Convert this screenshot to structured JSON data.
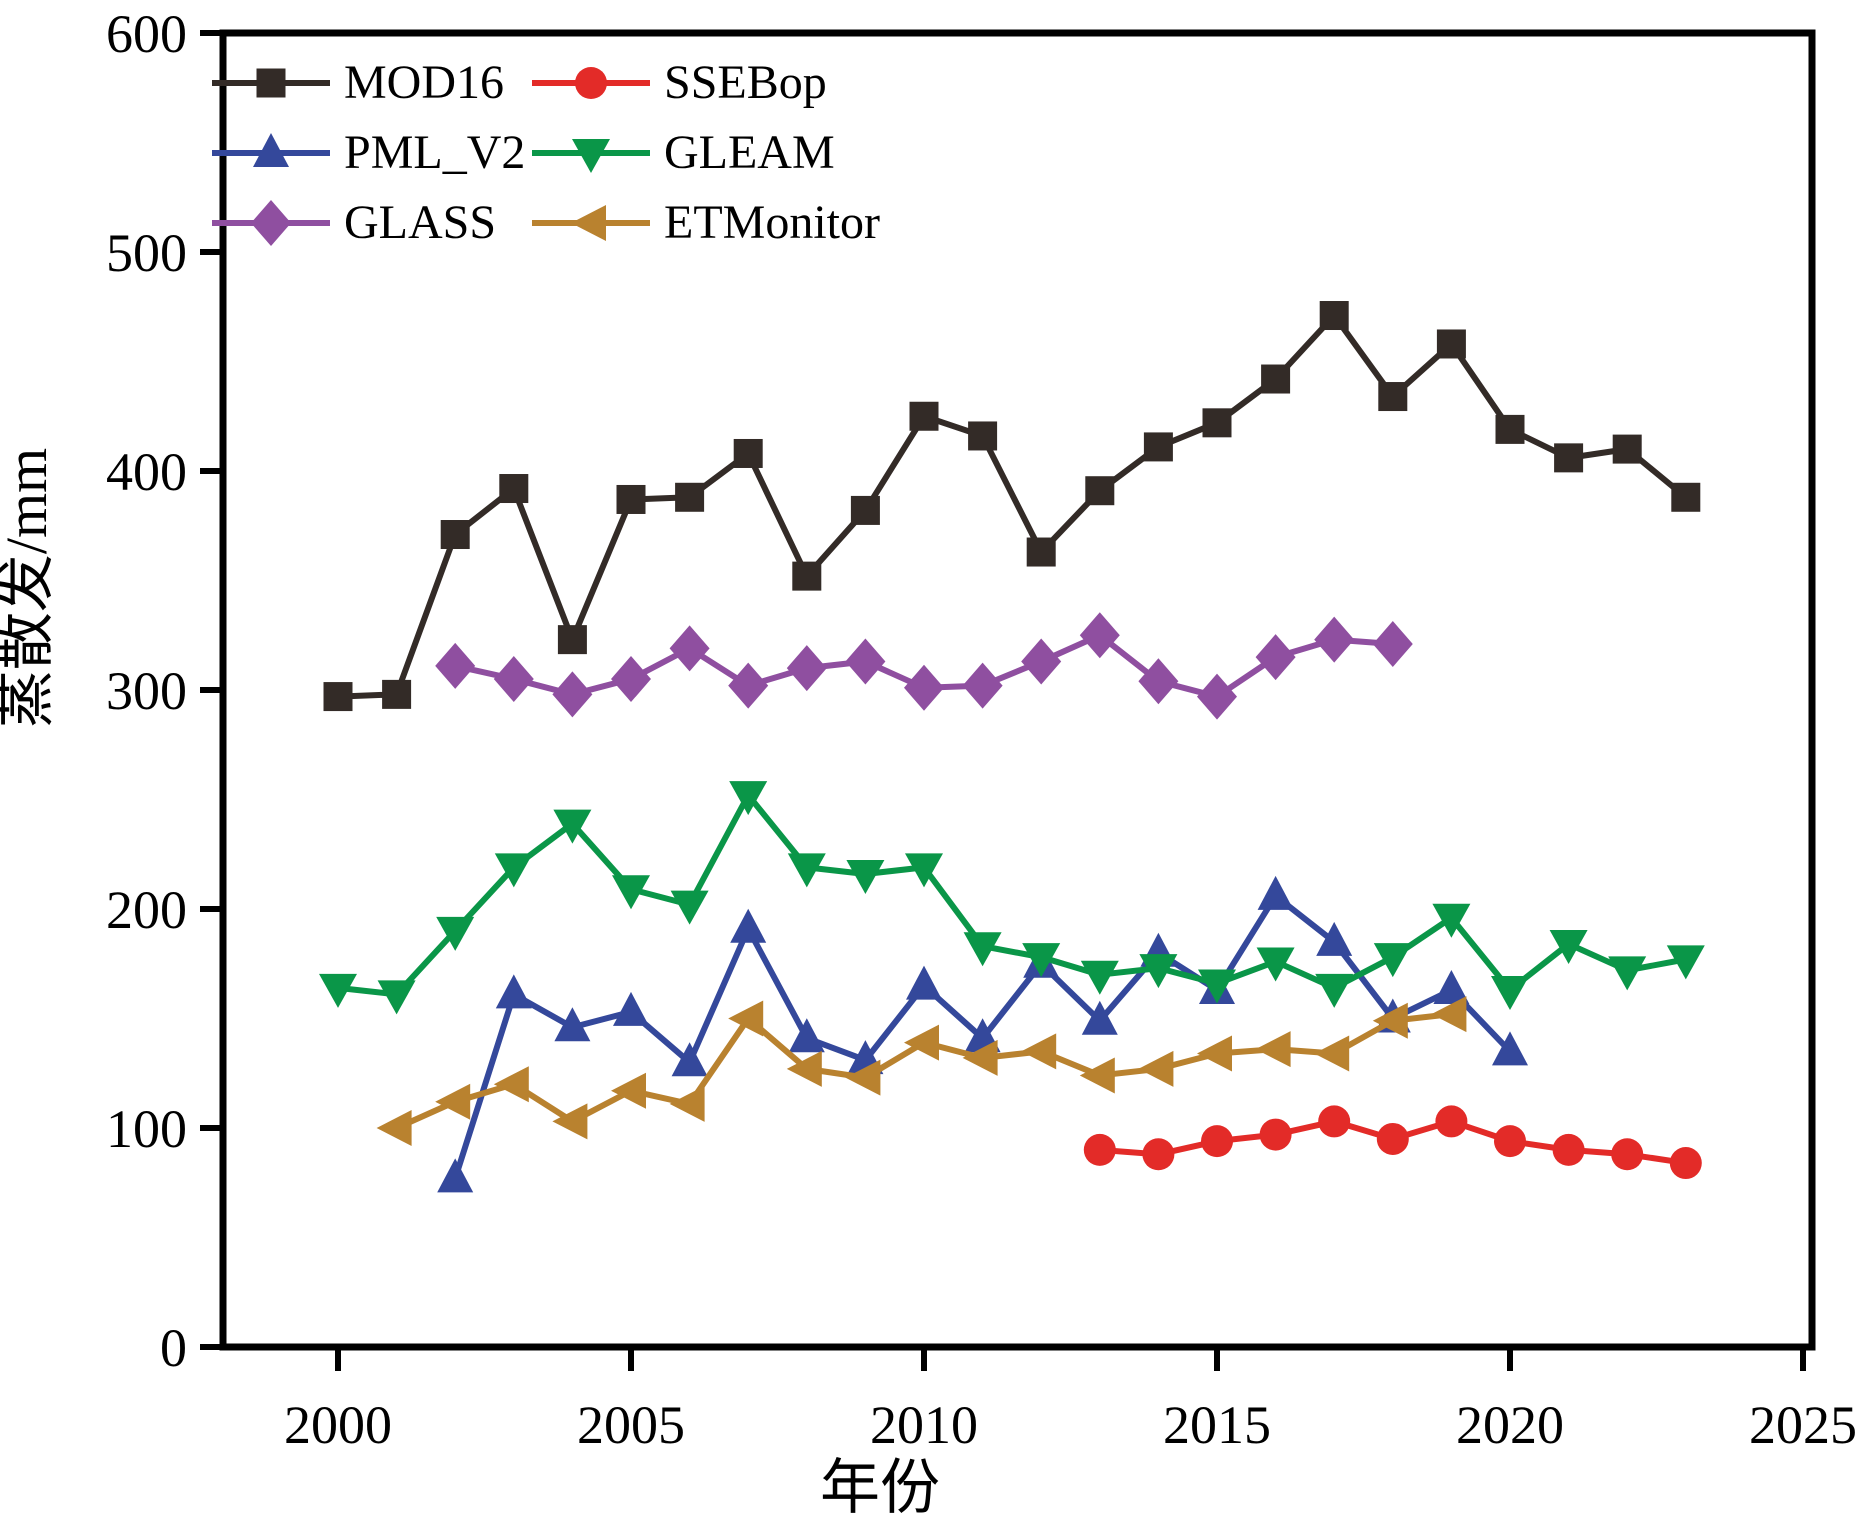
{
  "chart_data": {
    "type": "line",
    "title": "",
    "xlabel": "年份",
    "ylabel": "蒸散发/mm",
    "xlim": [
      1998,
      2025.2
    ],
    "ylim": [
      0,
      600
    ],
    "xticks": [
      2000,
      2005,
      2010,
      2015,
      2020,
      2025
    ],
    "yticks": [
      0,
      100,
      200,
      300,
      400,
      500,
      600
    ],
    "grid": false,
    "background": "#ffffff",
    "axis_color": "#000000",
    "legend_position": "top-left-inside-two-columns",
    "series": [
      {
        "name": "MOD16",
        "color": "#332b27",
        "marker": "square",
        "years": [
          2000,
          2001,
          2002,
          2003,
          2004,
          2005,
          2006,
          2007,
          2008,
          2009,
          2010,
          2011,
          2012,
          2013,
          2014,
          2015,
          2016,
          2017,
          2018,
          2019,
          2020,
          2021,
          2022,
          2023
        ],
        "values": [
          297,
          298,
          371,
          392,
          323,
          387,
          388,
          408,
          352,
          382,
          425,
          416,
          363,
          391,
          411,
          422,
          442,
          471,
          434,
          458,
          419,
          406,
          410,
          388
        ]
      },
      {
        "name": "PML_V2",
        "color": "#34489b",
        "marker": "triangle-up",
        "years": [
          2002,
          2003,
          2004,
          2005,
          2006,
          2007,
          2008,
          2009,
          2010,
          2011,
          2012,
          2013,
          2014,
          2015,
          2016,
          2017,
          2018,
          2019,
          2020
        ],
        "values": [
          77,
          161,
          146,
          153,
          130,
          191,
          141,
          131,
          165,
          141,
          175,
          149,
          180,
          163,
          206,
          185,
          150,
          163,
          135
        ]
      },
      {
        "name": "GLASS",
        "color": "#8f4fa0",
        "marker": "diamond",
        "years": [
          2002,
          2003,
          2004,
          2005,
          2006,
          2007,
          2008,
          2009,
          2010,
          2011,
          2012,
          2013,
          2014,
          2015,
          2016,
          2017,
          2018
        ],
        "values": [
          311,
          305,
          298,
          305,
          319,
          302,
          310,
          313,
          301,
          302,
          313,
          325,
          304,
          297,
          315,
          323,
          321
        ]
      },
      {
        "name": "GLEAM",
        "color": "#0a9648",
        "marker": "triangle-down",
        "years": [
          2000,
          2001,
          2002,
          2003,
          2004,
          2005,
          2006,
          2007,
          2008,
          2009,
          2010,
          2011,
          2012,
          2013,
          2014,
          2015,
          2016,
          2017,
          2018,
          2019,
          2020,
          2021,
          2022,
          2023
        ],
        "values": [
          164,
          161,
          190,
          219,
          239,
          209,
          202,
          252,
          219,
          216,
          219,
          183,
          178,
          170,
          173,
          166,
          176,
          164,
          178,
          196,
          163,
          184,
          172,
          177
        ]
      },
      {
        "name": "ETMonitor",
        "color": "#b9822f",
        "marker": "triangle-left",
        "years": [
          2001,
          2002,
          2003,
          2004,
          2005,
          2006,
          2007,
          2008,
          2009,
          2010,
          2011,
          2012,
          2013,
          2014,
          2015,
          2016,
          2017,
          2018,
          2019
        ],
        "values": [
          100,
          112,
          120,
          103,
          117,
          111,
          150,
          127,
          123,
          139,
          132,
          135,
          124,
          127,
          134,
          136,
          134,
          149,
          152
        ]
      },
      {
        "name": "SSEBop",
        "color": "#e32b28",
        "marker": "circle",
        "years": [
          2013,
          2014,
          2015,
          2016,
          2017,
          2018,
          2019,
          2020,
          2021,
          2022,
          2023
        ],
        "values": [
          90,
          88,
          94,
          97,
          103,
          95,
          103,
          94,
          90,
          88,
          84
        ]
      }
    ],
    "legend_display_order": [
      0,
      5,
      1,
      3,
      2,
      4
    ]
  }
}
